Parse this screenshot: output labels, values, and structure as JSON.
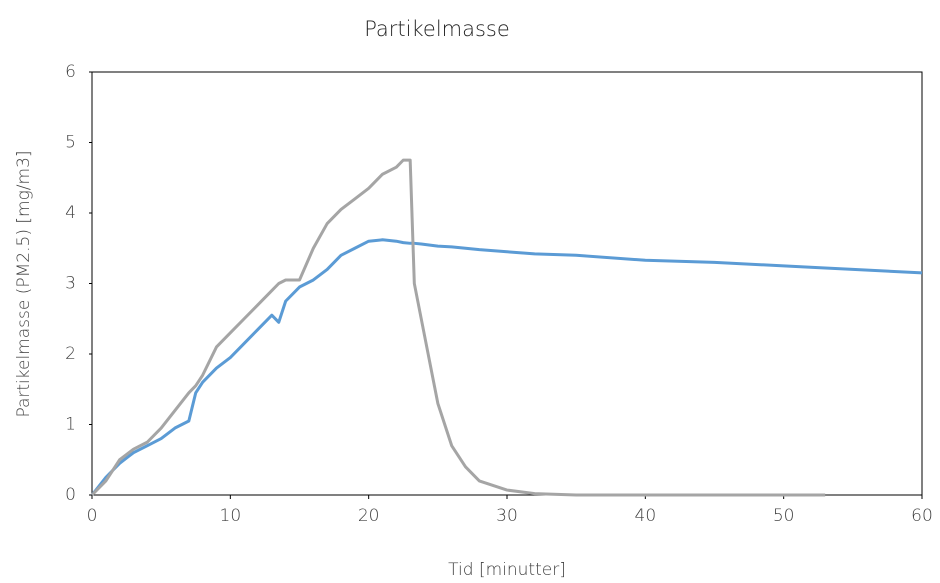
{
  "chart_data": {
    "type": "line",
    "title": "Partikelmasse",
    "xlabel": "Tid [minutter]",
    "ylabel": "Partikelmasse (PM2.5) [mg/m3]",
    "x": [
      0,
      1,
      2,
      3,
      4,
      5,
      6,
      7,
      7.5,
      8,
      9,
      10,
      11,
      12,
      13,
      13.5,
      14,
      15,
      16,
      17,
      18,
      19,
      20,
      21,
      22,
      22.5,
      23,
      23.3,
      23.8,
      25,
      26,
      27,
      28,
      30,
      32,
      35,
      40,
      45,
      50,
      53,
      55,
      60
    ],
    "series": [
      {
        "color": "#5b9bd5",
        "values": [
          0,
          0.25,
          0.45,
          0.6,
          0.7,
          0.8,
          0.95,
          1.05,
          1.45,
          1.6,
          1.8,
          1.95,
          2.15,
          2.35,
          2.55,
          2.45,
          2.75,
          2.95,
          3.05,
          3.2,
          3.4,
          3.5,
          3.6,
          3.62,
          3.6,
          3.58,
          3.57,
          3.57,
          3.56,
          3.53,
          3.52,
          3.5,
          3.48,
          3.45,
          3.42,
          3.4,
          3.33,
          3.3,
          3.25,
          3.22,
          3.2,
          3.15
        ]
      },
      {
        "color": "#a5a5a5",
        "values": [
          0,
          0.2,
          0.5,
          0.65,
          0.75,
          0.95,
          1.2,
          1.45,
          1.55,
          1.7,
          2.1,
          2.3,
          2.5,
          2.7,
          2.9,
          3.0,
          3.05,
          3.05,
          3.5,
          3.85,
          4.05,
          4.2,
          4.35,
          4.55,
          4.65,
          4.75,
          4.75,
          3.0,
          2.5,
          1.3,
          0.7,
          0.4,
          0.2,
          0.07,
          0.02,
          0,
          0,
          0,
          0,
          0,
          null,
          null
        ]
      }
    ],
    "xlim": [
      0,
      60
    ],
    "xticks": [
      0,
      10,
      20,
      30,
      40,
      50,
      60
    ],
    "ylim": [
      0,
      6
    ],
    "yticks": [
      0,
      1,
      2,
      3,
      4,
      5,
      6
    ]
  }
}
